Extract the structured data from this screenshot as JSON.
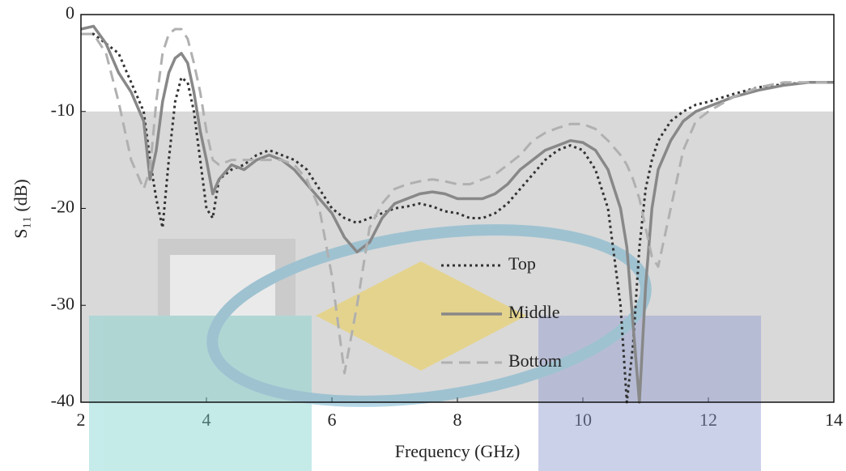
{
  "chart_data": {
    "type": "line",
    "x_label": "Frequency (GHz)",
    "y_label": "S₁₁ (dB)",
    "xlim": [
      2,
      14
    ],
    "ylim": [
      -40,
      0
    ],
    "xticks": [
      2,
      4,
      6,
      8,
      10,
      12,
      14
    ],
    "yticks": [
      0,
      -10,
      -20,
      -30,
      -40
    ],
    "shade_below": -10,
    "shade_color": "#d9d9d9",
    "legend": "center",
    "x": [
      2,
      2.2,
      2.4,
      2.6,
      2.8,
      3.0,
      3.1,
      3.2,
      3.3,
      3.4,
      3.5,
      3.6,
      3.7,
      3.8,
      3.9,
      4.0,
      4.1,
      4.2,
      4.4,
      4.6,
      4.8,
      5.0,
      5.2,
      5.4,
      5.6,
      5.8,
      6.0,
      6.2,
      6.4,
      6.6,
      6.8,
      7.0,
      7.2,
      7.4,
      7.6,
      7.8,
      8.0,
      8.2,
      8.4,
      8.6,
      8.8,
      9.0,
      9.2,
      9.4,
      9.6,
      9.8,
      10.0,
      10.2,
      10.4,
      10.6,
      10.7,
      10.8,
      10.9,
      11.0,
      11.1,
      11.2,
      11.4,
      11.6,
      11.8,
      12.0,
      12.4,
      12.8,
      13.2,
      13.6,
      14.0
    ],
    "series": [
      {
        "name": "Top",
        "color": "#333333",
        "dash": "dotted",
        "values": [
          -2,
          -2,
          -3,
          -4,
          -7,
          -10,
          -15,
          -19,
          -22,
          -15,
          -9,
          -6.5,
          -7,
          -10,
          -15,
          -20,
          -21,
          -17,
          -16,
          -15.5,
          -14.5,
          -14,
          -14.5,
          -15,
          -16,
          -18,
          -20,
          -21,
          -21.5,
          -21,
          -20.5,
          -20,
          -19.8,
          -19.5,
          -19.8,
          -20.3,
          -20.5,
          -21,
          -21,
          -20.5,
          -19.5,
          -18,
          -16.5,
          -15,
          -14,
          -13.5,
          -14,
          -16,
          -20,
          -30,
          -40,
          -34,
          -24,
          -18,
          -15,
          -13,
          -11,
          -10,
          -9.3,
          -9,
          -8.2,
          -7.5,
          -7.2,
          -7,
          -7
        ]
      },
      {
        "name": "Middle",
        "color": "#888888",
        "dash": "solid",
        "values": [
          -1.5,
          -1.2,
          -3,
          -6,
          -8,
          -11,
          -17,
          -14,
          -9,
          -6,
          -4.5,
          -4,
          -5,
          -8,
          -12,
          -15,
          -18.5,
          -17,
          -15.5,
          -16,
          -15,
          -14.5,
          -15,
          -16,
          -17.5,
          -19,
          -20.5,
          -23,
          -24.5,
          -23.5,
          -21,
          -19.5,
          -19,
          -18.5,
          -18.3,
          -18.5,
          -19,
          -19,
          -19,
          -18.5,
          -17.5,
          -16,
          -15,
          -14,
          -13.5,
          -13,
          -13.2,
          -14,
          -16,
          -20,
          -24,
          -32,
          -40,
          -28,
          -20,
          -16,
          -13,
          -11,
          -10,
          -9.5,
          -8.5,
          -7.8,
          -7.3,
          -7,
          -7
        ]
      },
      {
        "name": "Bottom",
        "color": "#b0b0b0",
        "dash": "dashed",
        "values": [
          -2,
          -2,
          -4,
          -9,
          -15,
          -18,
          -16,
          -9,
          -4,
          -2,
          -1.5,
          -1.5,
          -2.5,
          -5,
          -8,
          -12,
          -15,
          -15.5,
          -15,
          -15,
          -15,
          -15,
          -15,
          -15.5,
          -17,
          -20,
          -27,
          -37,
          -30,
          -22,
          -19.5,
          -18,
          -17.5,
          -17.2,
          -17,
          -17.2,
          -17.5,
          -17.5,
          -17,
          -16.5,
          -15.5,
          -14.5,
          -13,
          -12.2,
          -11.7,
          -11.3,
          -11.3,
          -11.8,
          -13,
          -14.5,
          -15.5,
          -17,
          -19,
          -22,
          -25,
          -26,
          -20,
          -14,
          -11,
          -10,
          -8.5,
          -7.5,
          -7,
          -7,
          -7
        ]
      }
    ]
  }
}
